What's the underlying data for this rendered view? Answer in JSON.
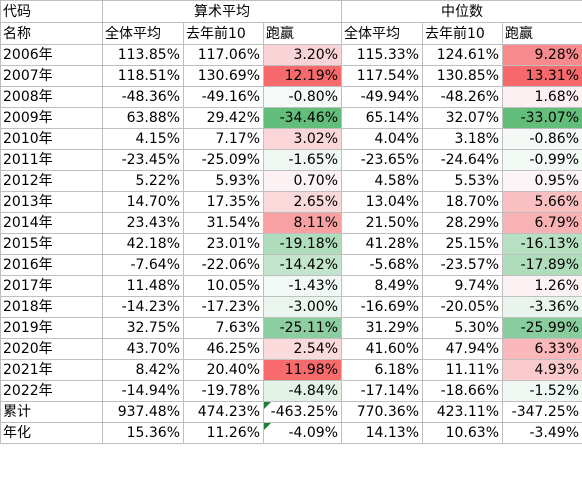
{
  "header": {
    "code_label": "代码",
    "group_mean": "算术平均",
    "group_median": "中位数",
    "name_label": "名称",
    "cols": [
      "全体平均",
      "去年前10",
      "跑赢",
      "全体平均",
      "去年前10",
      "跑赢"
    ]
  },
  "rows": [
    {
      "label": "2006年",
      "v": [
        "113.85%",
        "117.06%",
        "3.20%",
        "115.33%",
        "124.61%",
        "9.28%"
      ],
      "c": [
        "",
        "",
        "#f9d3d5",
        "",
        "",
        "#f8898c"
      ]
    },
    {
      "label": "2007年",
      "v": [
        "118.51%",
        "130.69%",
        "12.19%",
        "117.54%",
        "130.85%",
        "13.31%"
      ],
      "c": [
        "",
        "",
        "#f8696b",
        "",
        "",
        "#f8696b"
      ]
    },
    {
      "label": "2008年",
      "v": [
        "-48.36%",
        "-49.16%",
        "-0.80%",
        "-49.94%",
        "-48.26%",
        "1.68%"
      ],
      "c": [
        "",
        "",
        "#f5f9f7",
        "",
        "",
        "#fcf0f2"
      ]
    },
    {
      "label": "2009年",
      "v": [
        "63.88%",
        "29.42%",
        "-34.46%",
        "65.14%",
        "32.07%",
        "-33.07%"
      ],
      "c": [
        "",
        "",
        "#63be7b",
        "",
        "",
        "#63be7b"
      ]
    },
    {
      "label": "2010年",
      "v": [
        "4.15%",
        "7.17%",
        "3.02%",
        "4.04%",
        "3.18%",
        "-0.86%"
      ],
      "c": [
        "",
        "",
        "#fad6d8",
        "",
        "",
        "#f4f9f6"
      ]
    },
    {
      "label": "2011年",
      "v": [
        "-23.45%",
        "-25.09%",
        "-1.65%",
        "-23.65%",
        "-24.64%",
        "-0.99%"
      ],
      "c": [
        "",
        "",
        "#f1f8f4",
        "",
        "",
        "#f3f9f5"
      ]
    },
    {
      "label": "2012年",
      "v": [
        "5.22%",
        "5.93%",
        "0.70%",
        "4.58%",
        "5.53%",
        "0.95%"
      ],
      "c": [
        "",
        "",
        "#fcf1f3",
        "",
        "",
        "#fcf4f6"
      ]
    },
    {
      "label": "2013年",
      "v": [
        "14.70%",
        "17.35%",
        "2.65%",
        "13.04%",
        "18.70%",
        "5.66%"
      ],
      "c": [
        "",
        "",
        "#fad9db",
        "",
        "",
        "#fabfc1"
      ]
    },
    {
      "label": "2014年",
      "v": [
        "23.43%",
        "31.54%",
        "8.11%",
        "21.50%",
        "28.29%",
        "6.79%"
      ],
      "c": [
        "",
        "",
        "#f9a0a2",
        "",
        "",
        "#f9b2b4"
      ]
    },
    {
      "label": "2015年",
      "v": [
        "42.18%",
        "23.01%",
        "-19.18%",
        "41.28%",
        "25.15%",
        "-16.13%"
      ],
      "c": [
        "",
        "",
        "#afdcbb",
        "",
        "",
        "#b7e0c2"
      ]
    },
    {
      "label": "2016年",
      "v": [
        "-7.64%",
        "-22.06%",
        "-14.42%",
        "-5.68%",
        "-23.57%",
        "-17.89%"
      ],
      "c": [
        "",
        "",
        "#c4e5cd",
        "",
        "",
        "#afdcbb"
      ]
    },
    {
      "label": "2017年",
      "v": [
        "11.48%",
        "10.05%",
        "-1.43%",
        "8.49%",
        "9.74%",
        "1.26%"
      ],
      "c": [
        "",
        "",
        "#f2f8f5",
        "",
        "",
        "#fcf2f4"
      ]
    },
    {
      "label": "2018年",
      "v": [
        "-14.23%",
        "-17.23%",
        "-3.00%",
        "-16.69%",
        "-20.05%",
        "-3.36%"
      ],
      "c": [
        "",
        "",
        "#eaf5ee",
        "",
        "",
        "#e8f4ec"
      ]
    },
    {
      "label": "2019年",
      "v": [
        "32.75%",
        "7.63%",
        "-25.11%",
        "31.29%",
        "5.30%",
        "-25.99%"
      ],
      "c": [
        "",
        "",
        "#8dcea0",
        "",
        "",
        "#89cc9d"
      ]
    },
    {
      "label": "2020年",
      "v": [
        "43.70%",
        "46.25%",
        "2.54%",
        "41.60%",
        "47.94%",
        "6.33%"
      ],
      "c": [
        "",
        "",
        "#fbdadc",
        "",
        "",
        "#fab8ba"
      ]
    },
    {
      "label": "2021年",
      "v": [
        "8.42%",
        "20.40%",
        "11.98%",
        "6.18%",
        "11.11%",
        "4.93%"
      ],
      "c": [
        "",
        "",
        "#f86b6d",
        "",
        "",
        "#facacd"
      ]
    },
    {
      "label": "2022年",
      "v": [
        "-14.94%",
        "-19.78%",
        "-4.84%",
        "-17.14%",
        "-18.66%",
        "-1.52%"
      ],
      "c": [
        "",
        "",
        "#e2f2e7",
        "",
        "",
        "#f0f8f3"
      ]
    },
    {
      "label": "累计",
      "v": [
        "937.48%",
        "474.23%",
        "-463.25%",
        "770.36%",
        "423.11%",
        "-347.25%"
      ],
      "c": [
        "",
        "",
        "",
        "",
        "",
        ""
      ],
      "mark": true
    },
    {
      "label": "年化",
      "v": [
        "15.36%",
        "11.26%",
        "-4.09%",
        "14.13%",
        "10.63%",
        "-3.49%"
      ],
      "c": [
        "",
        "",
        "",
        "",
        "",
        ""
      ],
      "mark": true
    }
  ]
}
